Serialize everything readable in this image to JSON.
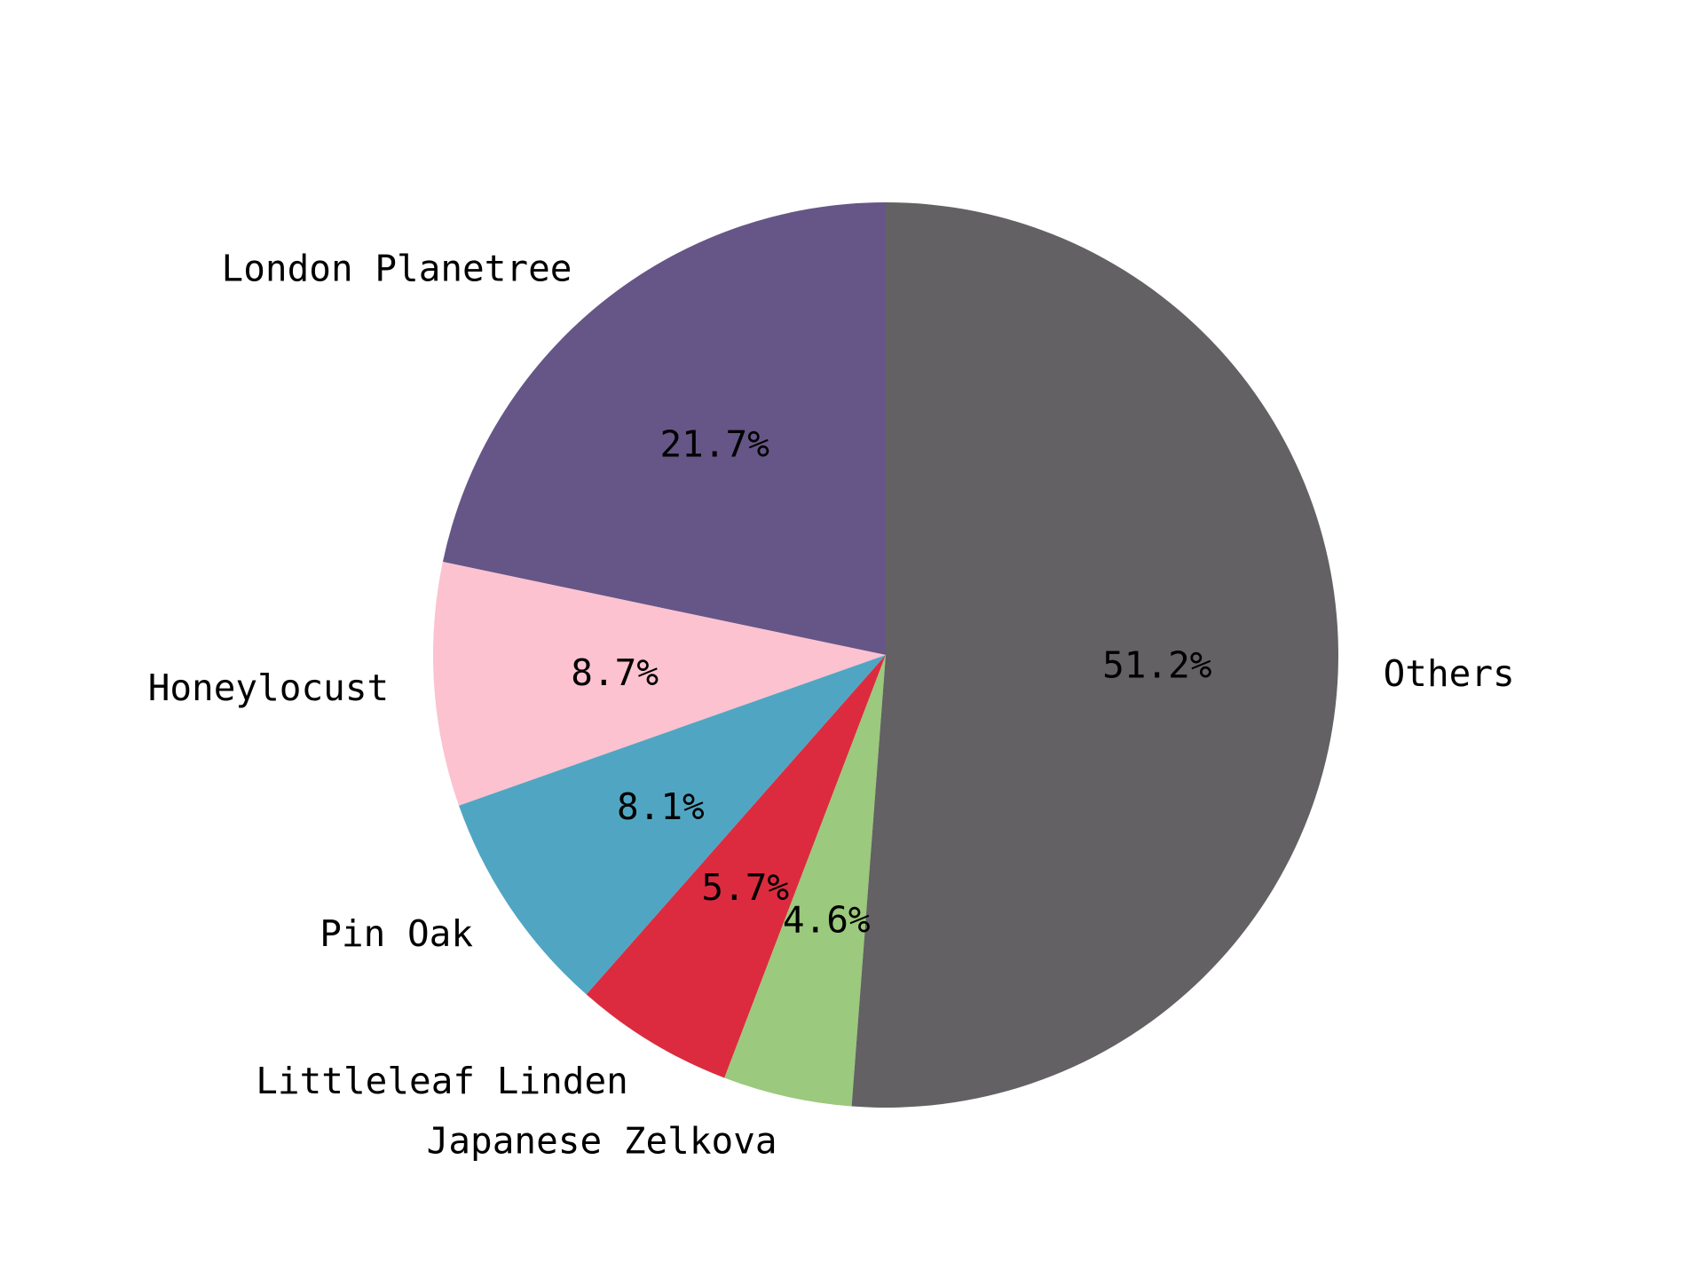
{
  "chart_data": {
    "type": "pie",
    "title": "",
    "start_angle_deg": 90,
    "direction": "counterclockwise",
    "slices": [
      {
        "label": "London Planetree",
        "value": 21.7,
        "pct_label": "21.7%",
        "color": "#665687"
      },
      {
        "label": "Honeylocust",
        "value": 8.7,
        "pct_label": "8.7%",
        "color": "#fcc2d0"
      },
      {
        "label": "Pin Oak",
        "value": 8.1,
        "pct_label": "8.1%",
        "color": "#50a6c2"
      },
      {
        "label": "Littleleaf Linden",
        "value": 5.7,
        "pct_label": "5.7%",
        "color": "#dc2b3f"
      },
      {
        "label": "Japanese Zelkova",
        "value": 4.6,
        "pct_label": "4.6%",
        "color": "#9bc97d"
      },
      {
        "label": "Others",
        "value": 51.2,
        "pct_label": "51.2%",
        "color": "#636164"
      }
    ]
  }
}
